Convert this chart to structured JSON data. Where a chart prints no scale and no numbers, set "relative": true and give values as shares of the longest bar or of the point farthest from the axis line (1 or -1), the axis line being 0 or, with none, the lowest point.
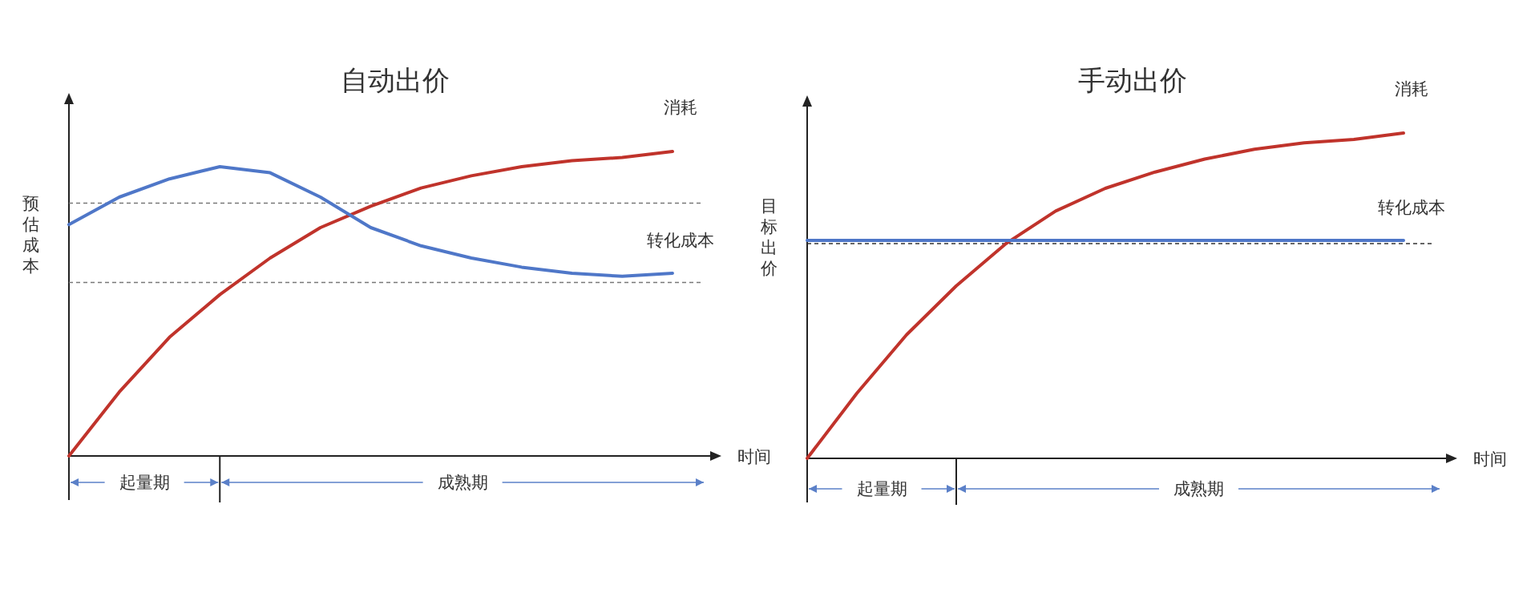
{
  "chart_data": [
    {
      "type": "line",
      "title": "自动出价",
      "xlabel": "时间",
      "ylabel": "预估成本",
      "relative": true,
      "categories": [
        null,
        null,
        null,
        null,
        null,
        null,
        null,
        null,
        null,
        null,
        null,
        null,
        null
      ],
      "series": [
        {
          "name": "消耗",
          "color": "#c0332b",
          "values": [
            0,
            0.21,
            0.39,
            0.53,
            0.65,
            0.75,
            0.82,
            0.88,
            0.92,
            0.95,
            0.97,
            0.98,
            1
          ]
        },
        {
          "name": "转化成本",
          "color": "#4f77c8",
          "values": [
            0.76,
            0.85,
            0.91,
            0.95,
            0.93,
            0.85,
            0.75,
            0.69,
            0.65,
            0.62,
            0.6,
            0.59,
            0.6
          ]
        }
      ],
      "ref_lines": [
        {
          "axis": "y",
          "value": 0.83,
          "color": "#777777",
          "line_style": "dashed"
        },
        {
          "axis": "y",
          "value": 0.57,
          "color": "#777777",
          "line_style": "dashed"
        }
      ],
      "annotations": [
        "起量期",
        "成熟期"
      ]
    },
    {
      "type": "line",
      "title": "手动出价",
      "xlabel": "时间",
      "ylabel": "目标出价",
      "relative": true,
      "categories": [
        null,
        null,
        null,
        null,
        null,
        null,
        null,
        null,
        null,
        null,
        null,
        null,
        null
      ],
      "series": [
        {
          "name": "消耗",
          "color": "#c0332b",
          "values": [
            0,
            0.2,
            0.38,
            0.53,
            0.66,
            0.76,
            0.83,
            0.88,
            0.92,
            0.95,
            0.97,
            0.98,
            1
          ]
        },
        {
          "name": "转化成本",
          "color": "#4f77c8",
          "values": [
            0.67,
            0.67,
            0.67,
            0.67,
            0.67,
            0.67,
            0.67,
            0.67,
            0.67,
            0.67,
            0.67,
            0.67,
            0.67
          ]
        }
      ],
      "ref_lines": [
        {
          "axis": "y",
          "value": 0.66,
          "color": "#333333",
          "line_style": "dashed"
        }
      ],
      "annotations": [
        "起量期",
        "成熟期"
      ]
    }
  ]
}
